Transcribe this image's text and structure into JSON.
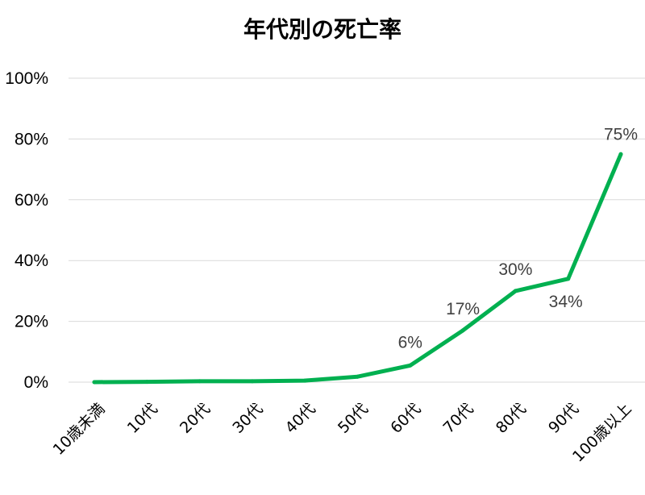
{
  "chart_data": {
    "type": "line",
    "title": "年代別の死亡率",
    "categories": [
      "10歳未満",
      "10代",
      "20代",
      "30代",
      "40代",
      "50代",
      "60代",
      "70代",
      "80代",
      "90代",
      "100歳以上"
    ],
    "series": [
      {
        "values": [
          0,
          0.1,
          0.3,
          0.3,
          0.5,
          1.8,
          5.5,
          17,
          30,
          34,
          75
        ],
        "color": "#00b050"
      }
    ],
    "data_labels": [
      {
        "index": 6,
        "text": "6%"
      },
      {
        "index": 7,
        "text": "17%"
      },
      {
        "index": 8,
        "text": "30%"
      },
      {
        "index": 9,
        "text": "34%"
      },
      {
        "index": 10,
        "text": "75%"
      }
    ],
    "y_ticks": [
      "0%",
      "20%",
      "40%",
      "60%",
      "80%",
      "100%"
    ],
    "ylim": [
      0,
      100
    ],
    "grid": true,
    "legend": "none",
    "xlabel": "",
    "ylabel": ""
  }
}
